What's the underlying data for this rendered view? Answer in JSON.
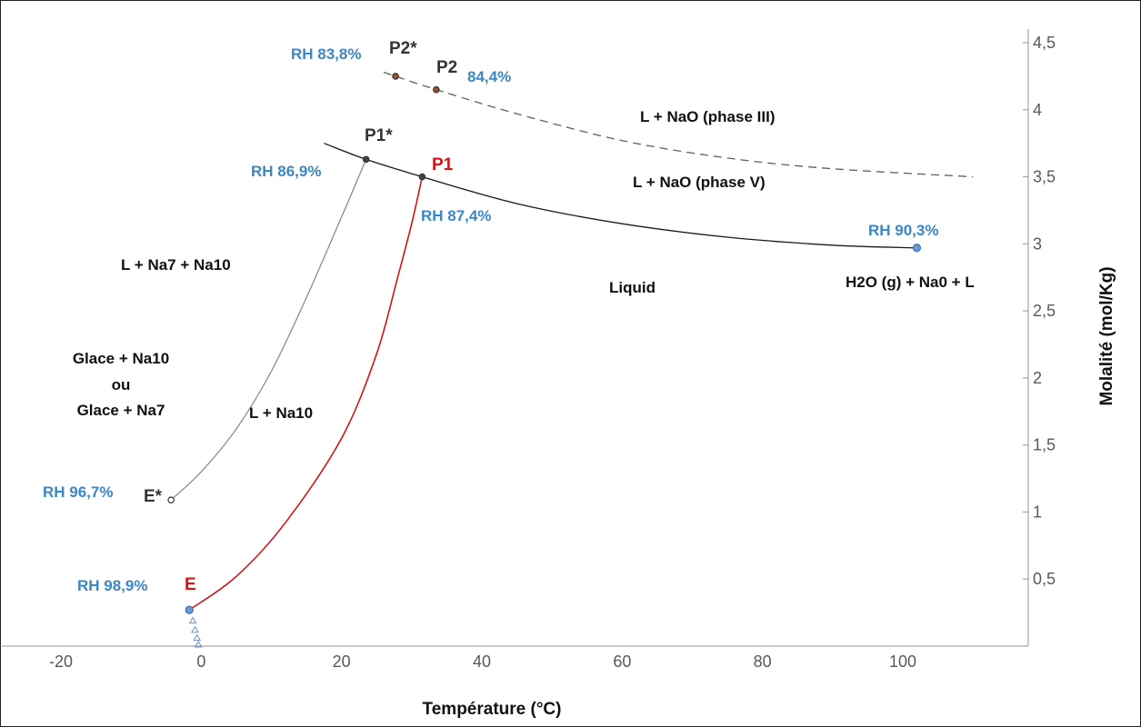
{
  "chart_data": {
    "type": "line",
    "xlabel": "Température (°C)",
    "ylabel": "Molalité (mol/Kg)",
    "xlim": [
      -20,
      115
    ],
    "ylim": [
      0,
      4.6
    ],
    "x_ticks": [
      "-20",
      "0",
      "20",
      "40",
      "60",
      "80",
      "100"
    ],
    "x_tick_values": [
      -20,
      0,
      20,
      40,
      60,
      80,
      100
    ],
    "y_ticks": [
      "0,5",
      "1",
      "1,5",
      "2",
      "2,5",
      "3",
      "3,5",
      "4",
      "4,5"
    ],
    "y_tick_values": [
      0.5,
      1,
      1.5,
      2,
      2.5,
      3,
      3.5,
      4,
      4.5
    ],
    "grid": false,
    "y_axis_side": "right",
    "series": [
      {
        "style": "dashed",
        "color": "#606060",
        "x": [
          26,
          27.7,
          33.5,
          45,
          60,
          75,
          90,
          110
        ],
        "y": [
          4.28,
          4.25,
          4.15,
          3.97,
          3.77,
          3.64,
          3.56,
          3.5
        ]
      },
      {
        "style": "solid",
        "color": "#1a1a1a",
        "x": [
          17.5,
          23.5,
          31.5,
          45,
          60,
          75,
          90,
          102
        ],
        "y": [
          3.75,
          3.63,
          3.5,
          3.3,
          3.15,
          3.05,
          2.99,
          2.97
        ]
      },
      {
        "style": "solid",
        "color": "#8c8c8c",
        "x": [
          -4.3,
          0,
          5,
          10,
          15,
          20,
          23.5
        ],
        "y": [
          1.09,
          1.3,
          1.62,
          2.05,
          2.6,
          3.2,
          3.63
        ]
      },
      {
        "style": "solid",
        "color": "#d0161b",
        "x": [
          -1.7,
          5,
          12,
          20,
          25,
          28,
          30,
          31.5
        ],
        "y": [
          0.27,
          0.52,
          0.92,
          1.55,
          2.18,
          2.75,
          3.15,
          3.5
        ]
      },
      {
        "style": "triangles",
        "color": "#6a8fcf",
        "x": [
          -1.7,
          -1.2,
          -0.9,
          -0.6,
          -0.4
        ],
        "y": [
          0.27,
          0.19,
          0.12,
          0.06,
          0.01
        ]
      }
    ],
    "points": [
      {
        "id": "P2*",
        "x": 27.7,
        "y": 4.25,
        "color": "#a0522d"
      },
      {
        "id": "P2",
        "x": 33.5,
        "y": 4.15,
        "color": "#a0522d"
      },
      {
        "id": "P1*",
        "x": 23.5,
        "y": 3.63,
        "color": "#444444"
      },
      {
        "id": "P1",
        "x": 31.5,
        "y": 3.5,
        "color": "#444444"
      },
      {
        "id": "RH 90,3%",
        "x": 102,
        "y": 2.97,
        "color": "#6b9bd1"
      },
      {
        "id": "E*",
        "x": -4.3,
        "y": 1.09,
        "color": "#444444"
      },
      {
        "id": "E",
        "x": -1.7,
        "y": 0.27,
        "color": "#6b9bd1"
      }
    ],
    "annotations": {
      "p2_star": "P2*",
      "p2": "P2",
      "p1_star": "P1*",
      "p1": "P1",
      "e_star": "E*",
      "e": "E",
      "rh_p2_star": "RH 83,8%",
      "rh_p2": "84,4%",
      "rh_p1_star": "RH 86,9%",
      "rh_p1": "RH 87,4%",
      "rh_end": "RH 90,3%",
      "rh_e_star": "RH 96,7%",
      "rh_e": "RH 98,9%",
      "region_phase_iii": "L + NaO (phase III)",
      "region_phase_v": "L + NaO (phase V)",
      "region_na7_na10": "L + Na7 + Na10",
      "region_liquid": "Liquid",
      "region_h2o": "H2O (g) + Na0 + L",
      "region_glace_1": "Glace + Na10",
      "region_glace_2": "ou",
      "region_glace_3": "Glace + Na7",
      "region_na10": "L + Na10"
    }
  }
}
